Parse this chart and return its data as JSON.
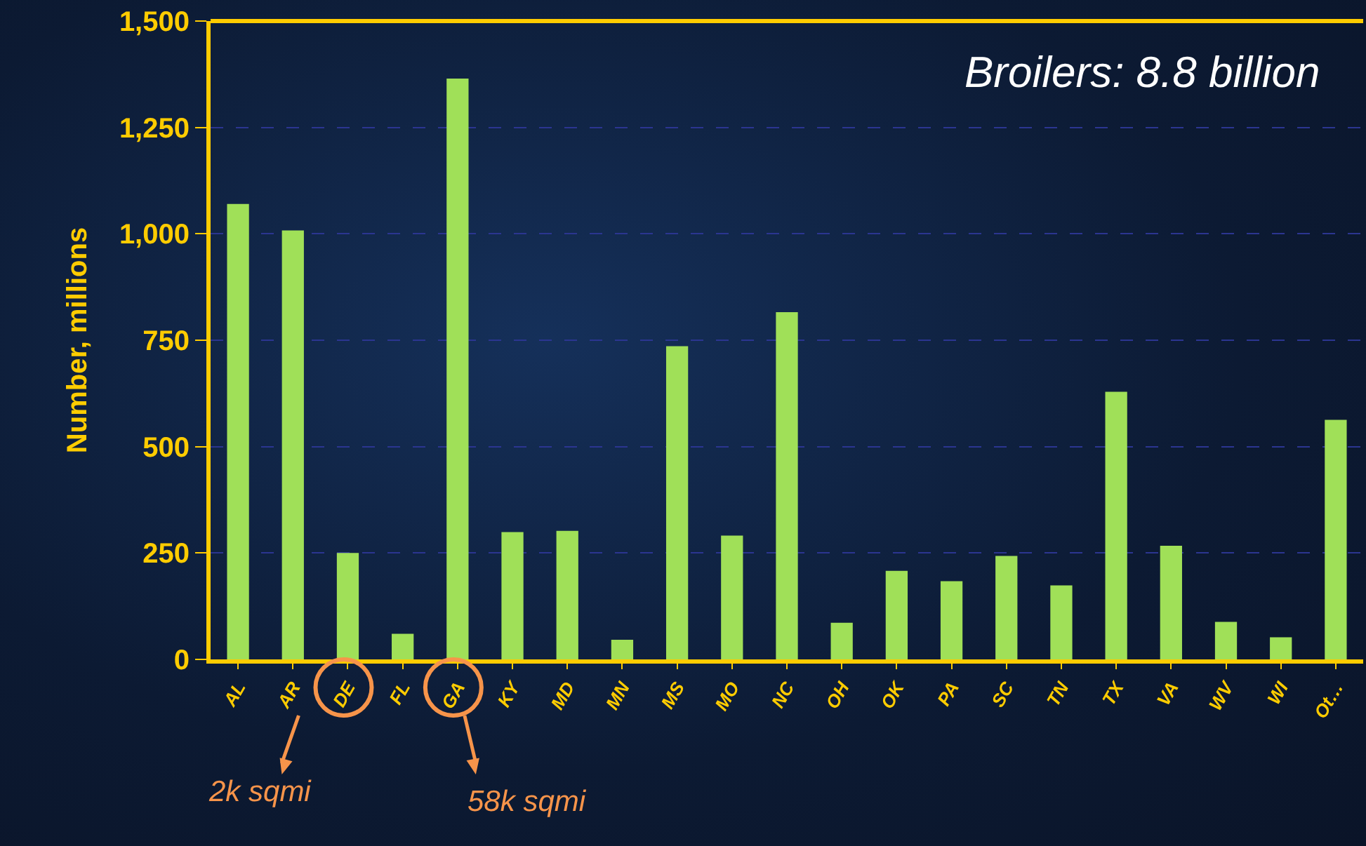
{
  "chart_data": {
    "type": "bar",
    "title": "Broilers: 8.8 billion",
    "ylabel": "Number, millions",
    "categories": [
      "AL",
      "AR",
      "DE",
      "FL",
      "GA",
      "KY",
      "MD",
      "MN",
      "MS",
      "MO",
      "NC",
      "OH",
      "OK",
      "PA",
      "SC",
      "TN",
      "TX",
      "VA",
      "WV",
      "WI",
      "Ot…"
    ],
    "values": [
      1070,
      1008,
      250,
      60,
      1365,
      299,
      302,
      46,
      736,
      291,
      816,
      86,
      208,
      184,
      243,
      174,
      629,
      267,
      88,
      52,
      563
    ],
    "color": "#a0e058",
    "ylim": [
      0,
      1500
    ],
    "yticks": [
      0,
      {
        "value": 250,
        "label": "250"
      },
      {
        "value": 500,
        "label": "500"
      },
      {
        "value": 750,
        "label": "750"
      },
      {
        "value": 1000,
        "label": "1,000"
      },
      {
        "value": 1250,
        "label": "1,250"
      },
      {
        "value": 1500,
        "label": "1,500"
      }
    ],
    "grid": "y",
    "annotations": [
      "2k sqmi",
      "58k sqmi"
    ]
  }
}
